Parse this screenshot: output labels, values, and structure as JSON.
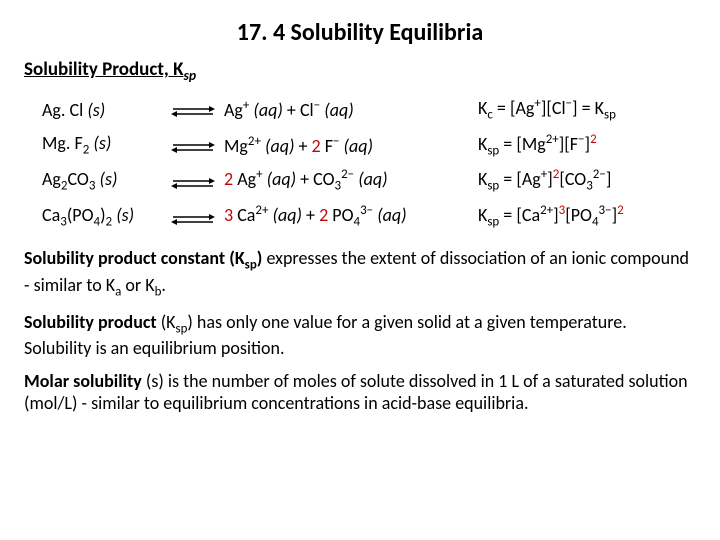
{
  "title": "17. 4 Solubility Equilibria",
  "subtitle_prefix": "Solubility Product, K",
  "subtitle_sub": "sp",
  "arrow": {
    "stroke": "#000000",
    "fill": "#000000",
    "width": 44,
    "height": 14
  },
  "rows": [
    {
      "reactant_html": "Ag. Cl <span class='it'>(s)</span>",
      "product_html": "Ag<span class='sup'>+</span> <span class='it'>(aq)</span> + Cl<span class='sup'>−</span> <span class='it'>(aq)</span>",
      "ksp_html": "K<span class='sub'>c</span> = [Ag<span class='sup'>+</span>][Cl<span class='sup'>−</span>] = K<span class='sub'>sp</span>"
    },
    {
      "reactant_html": "Mg. F<span class='sub'>2</span> <span class='it'>(s)</span>",
      "product_html": "Mg<span class='sup'>2+</span> <span class='it'>(aq)</span> + <span class='red'>2</span> F<span class='sup'>−</span> <span class='it'>(aq)</span>",
      "ksp_html": "K<span class='sub'>sp</span> = [Mg<span class='sup'>2+</span>][F<span class='sup'>−</span>]<span class='sup red'>2</span>"
    },
    {
      "reactant_html": "Ag<span class='sub'>2</span>CO<span class='sub'>3</span> <span class='it'>(s)</span>",
      "product_html": "<span class='red'>2</span> Ag<span class='sup'>+</span> <span class='it'>(aq)</span> + CO<span class='sub'>3</span><span class='sup'>2−</span> <span class='it'>(aq)</span>",
      "ksp_html": "K<span class='sub'>sp</span> = [Ag<span class='sup'>+</span>]<span class='sup red'>2</span>[CO<span class='sub'>3</span><span class='sup'>2−</span>]"
    },
    {
      "reactant_html": "Ca<span class='sub'>3</span>(PO<span class='sub'>4</span>)<span class='sub'>2</span> <span class='it'>(s)</span>",
      "product_html": "<span class='red'>3</span> Ca<span class='sup'>2+</span> <span class='it'>(aq)</span> + <span class='red'>2</span> PO<span class='sub'>4</span><span class='sup'>3−</span> <span class='it'>(aq)</span>",
      "ksp_html": "K<span class='sub'>sp</span> = [Ca<span class='sup'>2+</span>]<span class='sup red'>3</span>[PO<span class='sub'>4</span><span class='sup'>3−</span>]<span class='sup red'>2</span>"
    }
  ],
  "para1_html": "<span class='b'>Solubility product constant (K<span class='sub'>sp</span>)</span> expresses the extent of dissociation of an ionic compound - similar to K<span class='sub'>a</span> or K<span class='sub'>b</span>.",
  "para2_html": "<span class='b'>Solubility product</span> (K<span class='sub'>sp</span>) has only one value for a given solid at a given temperature. Solubility is an equilibrium position.",
  "para3_html": "<span class='b'>Molar solubility</span> (s) is the number of moles of solute dissolved in 1 L of a saturated solution (mol/L) - similar to equilibrium concentrations in acid-base equilibria."
}
